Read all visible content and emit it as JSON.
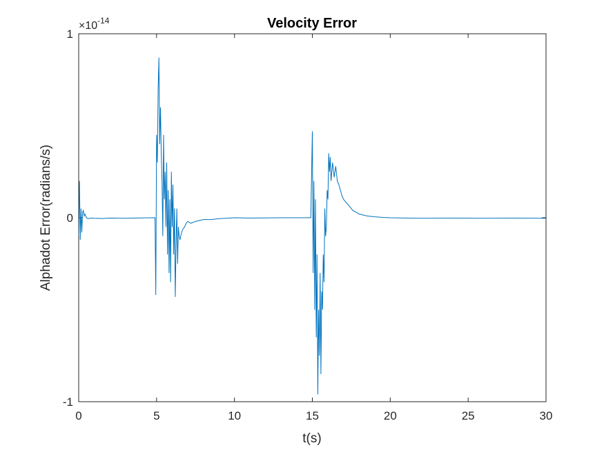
{
  "chart_data": {
    "type": "line",
    "title": "Velocity Error",
    "xlabel": "t(s)",
    "ylabel": "Alphadot Error(radians/s)",
    "xlim": [
      0,
      30
    ],
    "ylim": [
      -1,
      1
    ],
    "y_multiplier": "×10",
    "y_exponent": "-14",
    "xticks": [
      "0",
      "5",
      "10",
      "15",
      "20",
      "25",
      "30"
    ],
    "yticks": [
      "-1",
      "0",
      "1"
    ],
    "grid": false,
    "line_color": "#0072BD",
    "series": [
      {
        "x": [
          0,
          0.05,
          0.1,
          0.15,
          0.2,
          0.25,
          0.3,
          0.35,
          0.4,
          0.5,
          0.6,
          0.8,
          1.0,
          1.5,
          2.0,
          3.0,
          4.0,
          4.9,
          4.95,
          5.0,
          5.05,
          5.1,
          5.15,
          5.2,
          5.25,
          5.3,
          5.35,
          5.4,
          5.45,
          5.5,
          5.55,
          5.6,
          5.65,
          5.7,
          5.75,
          5.8,
          5.85,
          5.9,
          5.95,
          6.0,
          6.05,
          6.1,
          6.15,
          6.2,
          6.25,
          6.3,
          6.35,
          6.4,
          6.45,
          6.5,
          6.6,
          6.7,
          6.8,
          6.9,
          7.0,
          7.2,
          7.5,
          8.0,
          8.5,
          9.0,
          10.0,
          11.0,
          12.0,
          13.0,
          14.0,
          14.8,
          14.9,
          15.0,
          15.05,
          15.1,
          15.15,
          15.2,
          15.25,
          15.3,
          15.35,
          15.4,
          15.45,
          15.5,
          15.55,
          15.6,
          15.65,
          15.7,
          15.75,
          15.8,
          15.85,
          15.9,
          15.95,
          16.0,
          16.05,
          16.1,
          16.15,
          16.2,
          16.3,
          16.4,
          16.5,
          16.6,
          16.7,
          16.8,
          16.9,
          17.0,
          17.2,
          17.4,
          17.6,
          17.8,
          18.0,
          18.5,
          19.0,
          19.5,
          20.0,
          21.0,
          22.0,
          24.0,
          26.0,
          28.0,
          30.0
        ],
        "values": [
          -0.1,
          0.2,
          -0.12,
          0.05,
          -0.08,
          0.03,
          0.04,
          0.01,
          0.02,
          0.0,
          -0.005,
          -0.002,
          -0.003,
          -0.004,
          -0.002,
          -0.003,
          -0.001,
          0.0,
          -0.42,
          0.45,
          0.3,
          0.7,
          0.87,
          0.4,
          0.6,
          0.35,
          0.2,
          -0.1,
          0.45,
          0.1,
          0.25,
          -0.05,
          0.3,
          -0.2,
          0.15,
          -0.3,
          0.1,
          -0.35,
          0.25,
          -0.05,
          0.18,
          -0.2,
          0.05,
          -0.43,
          -0.15,
          0.05,
          -0.25,
          -0.05,
          -0.1,
          -0.12,
          -0.08,
          -0.06,
          -0.05,
          -0.03,
          -0.02,
          -0.03,
          -0.02,
          -0.01,
          -0.01,
          -0.005,
          0.0,
          -0.002,
          -0.001,
          0.0,
          0.0,
          0.0,
          0.0,
          0.47,
          -0.3,
          0.2,
          -0.5,
          0.1,
          -0.65,
          -0.2,
          -0.96,
          -0.5,
          -0.75,
          -0.3,
          -0.85,
          -0.4,
          -0.5,
          -0.2,
          -0.35,
          0.05,
          -0.1,
          -0.05,
          0.15,
          0.1,
          0.35,
          0.25,
          0.33,
          0.2,
          0.3,
          0.22,
          0.28,
          0.2,
          0.18,
          0.15,
          0.12,
          0.1,
          0.08,
          0.06,
          0.04,
          0.03,
          0.02,
          0.01,
          0.005,
          0.002,
          0.0,
          -0.002,
          -0.003,
          -0.002,
          -0.003,
          -0.002,
          -0.003
        ]
      }
    ]
  }
}
